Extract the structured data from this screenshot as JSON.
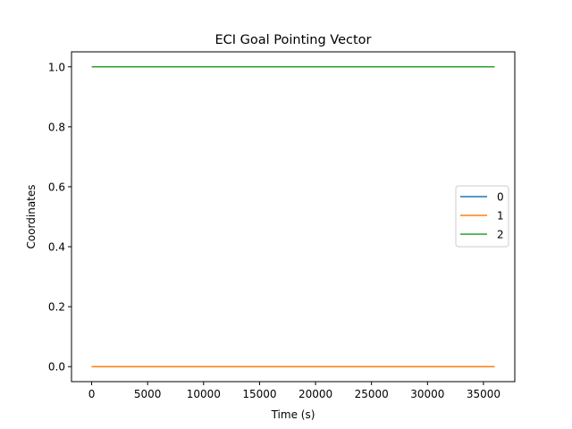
{
  "chart_data": {
    "type": "line",
    "title": "ECI Goal Pointing Vector",
    "xlabel": "Time (s)",
    "ylabel": "Coordinates",
    "xlim": [
      -1800,
      37800
    ],
    "ylim": [
      -0.05,
      1.05
    ],
    "xticks": [
      0,
      5000,
      10000,
      15000,
      20000,
      25000,
      30000,
      35000
    ],
    "xtick_labels": [
      "0",
      "5000",
      "10000",
      "15000",
      "20000",
      "25000",
      "30000",
      "35000"
    ],
    "yticks": [
      0.0,
      0.2,
      0.4,
      0.6,
      0.8,
      1.0
    ],
    "ytick_labels": [
      "0.0",
      "0.2",
      "0.4",
      "0.6",
      "0.8",
      "1.0"
    ],
    "grid": false,
    "legend_position": "center-right",
    "series": [
      {
        "name": "0",
        "color": "#1f77b4",
        "x": [
          0,
          36000
        ],
        "y": [
          0,
          0
        ]
      },
      {
        "name": "1",
        "color": "#ff7f0e",
        "x": [
          0,
          36000
        ],
        "y": [
          0,
          0
        ]
      },
      {
        "name": "2",
        "color": "#2ca02c",
        "x": [
          0,
          36000
        ],
        "y": [
          1,
          1
        ]
      }
    ]
  }
}
